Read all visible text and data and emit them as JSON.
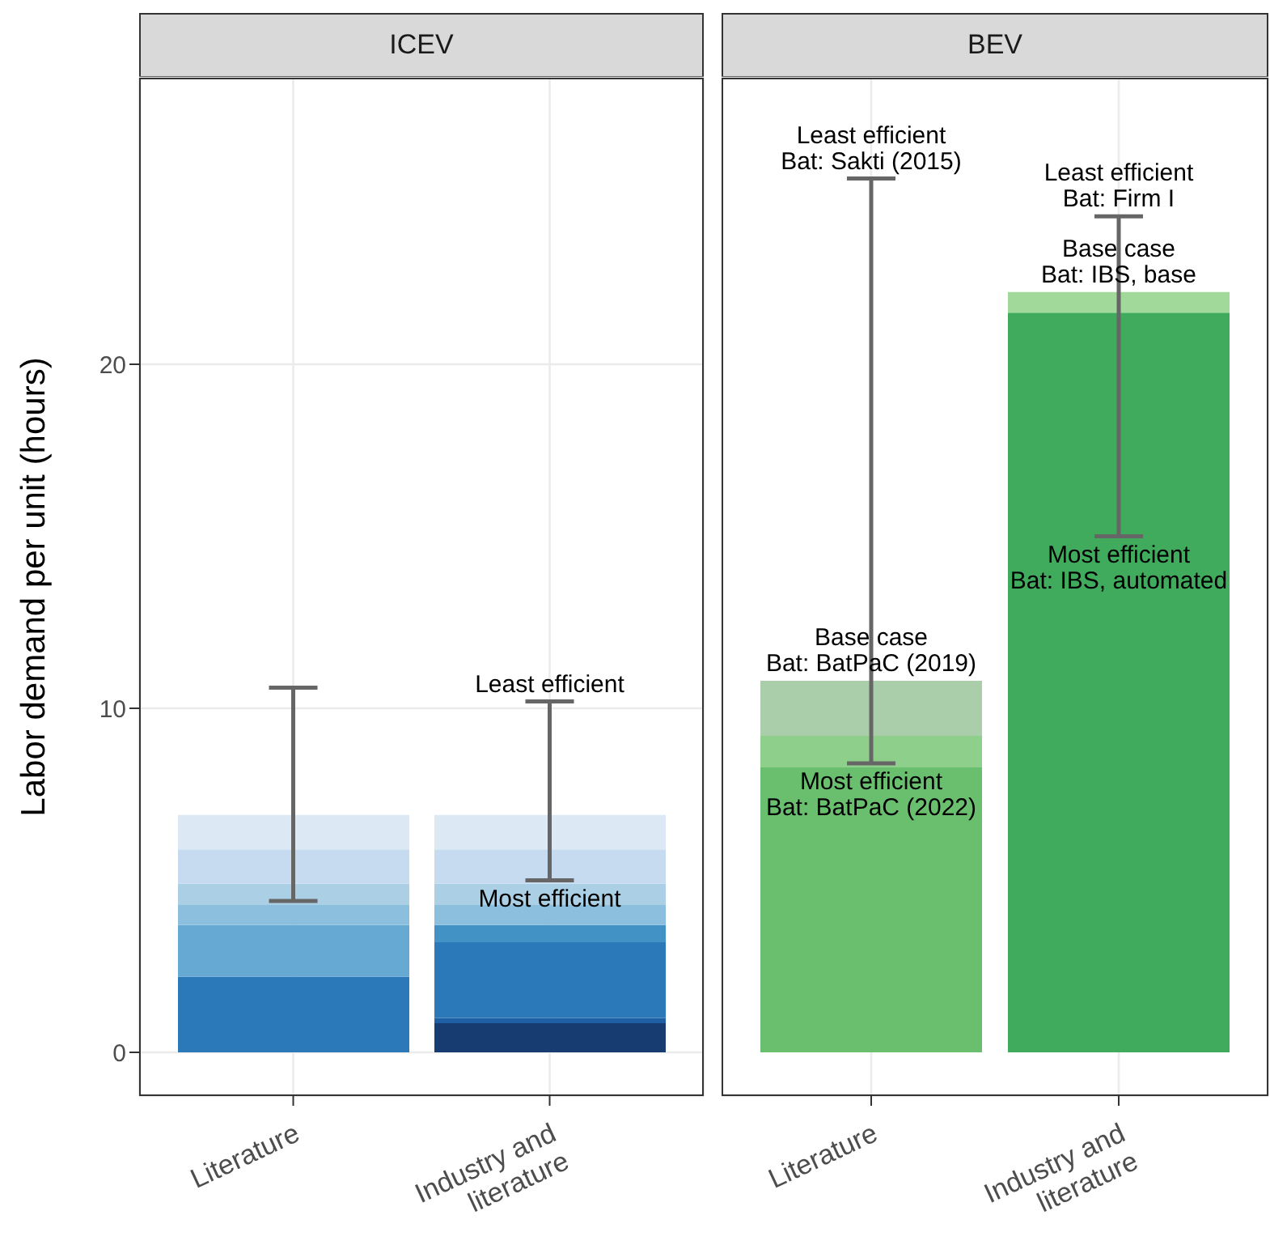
{
  "chart_data": [
    {
      "type": "bar",
      "title": "ICEV",
      "ylabel": "Labor demand per unit (hours)",
      "categories": [
        "Literature",
        "Industry and literature"
      ],
      "stacked": true,
      "grid": true,
      "ylim": [
        -1.27,
        28.33
      ],
      "yticks": [
        0,
        10,
        20
      ],
      "series": [
        {
          "color": "#163c72",
          "values": [
            null,
            0.85
          ]
        },
        {
          "color": "#1f5fa3",
          "values": [
            null,
            0.15
          ]
        },
        {
          "color": "#2b79b9",
          "values": [
            2.2,
            2.2
          ]
        },
        {
          "color": "#4292c6",
          "values": [
            null,
            0.5
          ]
        },
        {
          "color": "#66aad4",
          "values": [
            1.5,
            null
          ]
        },
        {
          "color": "#8bbfdd",
          "values": [
            0.6,
            0.6
          ]
        },
        {
          "color": "#abd0e6",
          "values": [
            0.6,
            0.6
          ]
        },
        {
          "color": "#c6dbef",
          "values": [
            1.0,
            1.0
          ]
        },
        {
          "color": "#dce9f5",
          "values": [
            1.0,
            1.0
          ],
          "errors": [
            [
              4.4,
              10.6
            ],
            [
              5.0,
              10.2
            ]
          ]
        }
      ],
      "annotations": [
        {
          "text": "Least efficient",
          "x": "Industry and literature",
          "y": 10.2
        },
        {
          "text": "Most efficient",
          "x": "Industry and literature",
          "y": 5.0
        }
      ]
    },
    {
      "type": "bar",
      "title": "BEV",
      "categories": [
        "Literature",
        "Industry and literature"
      ],
      "stacked": true,
      "grid": true,
      "ylim": [
        -1.27,
        28.33
      ],
      "yticks": [
        0,
        10,
        20
      ],
      "tick_labels": "x",
      "series": [
        {
          "color": "#6abf6e",
          "values": [
            8.3,
            null
          ]
        },
        {
          "color": "#41ab5d",
          "values": [
            null,
            21.5
          ]
        },
        {
          "color": "#8ed08b",
          "values": [
            0.9,
            null
          ]
        },
        {
          "color": "#a1d99b",
          "values": [
            null,
            0.6
          ],
          "errors": [
            null,
            [
              15.0,
              24.3
            ]
          ]
        },
        {
          "color": "#a9cea9",
          "values": [
            1.6,
            null
          ],
          "errors": [
            [
              8.4,
              25.4
            ],
            null
          ]
        }
      ],
      "annotations": [
        {
          "text": "Least efficient\nBat: Sakti (2015)",
          "x": "Literature",
          "y": 25.4
        },
        {
          "text": "Base case\nBat: BatPaC (2019)",
          "x": "Literature",
          "y": 10.8
        },
        {
          "text": "Most efficient\nBat: BatPaC (2022)",
          "x": "Literature",
          "y": 8.4
        },
        {
          "text": "Least efficient\nBat: Firm I",
          "x": "Industry and literature",
          "y": 24.3
        },
        {
          "text": "Base case\nBat: IBS, base",
          "x": "Industry and literature",
          "y": 22.1
        },
        {
          "text": "Most efficient\nBat: IBS, automated",
          "x": "Industry and literature",
          "y": 15.0
        }
      ]
    }
  ]
}
